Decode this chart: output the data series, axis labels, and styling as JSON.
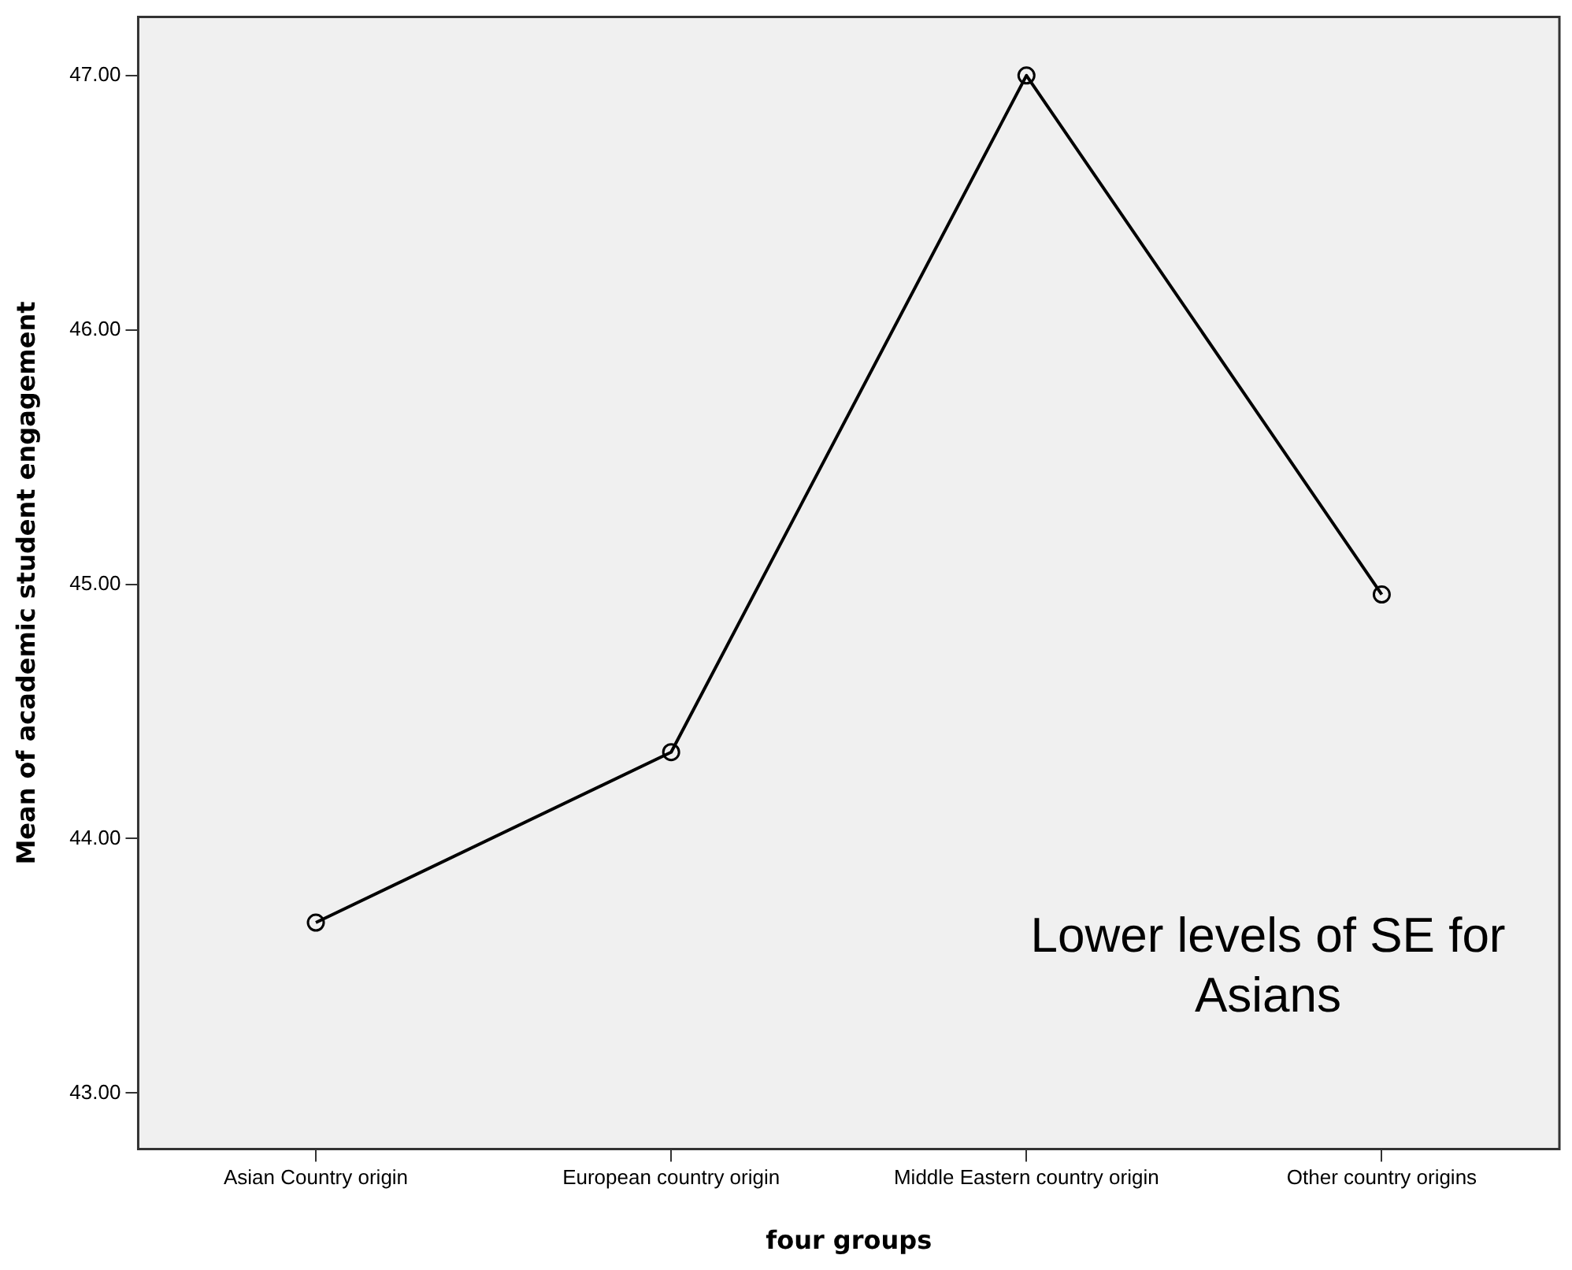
{
  "chart_data": {
    "type": "line",
    "xlabel": "four groups",
    "ylabel": "Mean of academic student engagement",
    "categories": [
      "Asian Country origin",
      "European country origin",
      "Middle Eastern country origin",
      "Other country origins"
    ],
    "series": [
      {
        "color": "#000000",
        "values": [
          43.67,
          44.34,
          47.0,
          44.96
        ]
      }
    ],
    "ylim": [
      42.78,
      47.23
    ],
    "yticks": [
      {
        "value": 43,
        "label": "43.00"
      },
      {
        "value": 44,
        "label": "44.00"
      },
      {
        "value": 45,
        "label": "45.00"
      },
      {
        "value": 46,
        "label": "46.00"
      },
      {
        "value": 47,
        "label": "47.00"
      }
    ],
    "marker": "circle",
    "line_style": "solid",
    "legend": false,
    "annotations": [
      "Lower levels of SE for Asians"
    ]
  }
}
